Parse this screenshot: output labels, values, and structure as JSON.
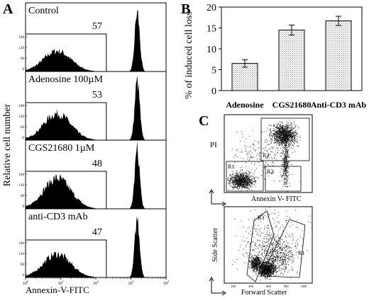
{
  "panel_labels": {
    "a": "A",
    "b": "B",
    "c": "C"
  },
  "chart_data": [
    {
      "type": "area",
      "panel": "A",
      "ylabel": "Relative cell number",
      "xlabel": "Annexin-V-FITC",
      "x_tick_labels": [
        "10",
        "10",
        "10",
        "10",
        "10"
      ],
      "x_tick_exponents": [
        "0",
        "1",
        "2",
        "3",
        "4"
      ],
      "xlim": [
        0,
        4
      ],
      "y_tick_labels": [
        "0",
        "60",
        "120",
        "180"
      ],
      "histograms": [
        {
          "label": "Control",
          "gate_value": "57",
          "low_peak_height": 0.35,
          "high_peak_height": 1.0
        },
        {
          "label": "Adenosine 100µM",
          "gate_value": "53",
          "low_peak_height": 0.45,
          "high_peak_height": 1.0
        },
        {
          "label": "CGS21680  1µM",
          "gate_value": "48",
          "low_peak_height": 0.52,
          "high_peak_height": 1.0
        },
        {
          "label": "anti-CD3 mAb",
          "gate_value": "47",
          "low_peak_height": 0.4,
          "high_peak_height": 1.0
        }
      ]
    },
    {
      "type": "bar",
      "panel": "B",
      "categories": [
        "Adenosine",
        "CGS21680",
        "Anti-CD3 mAb"
      ],
      "values": [
        6.5,
        14.5,
        16.7
      ],
      "errors": [
        0.9,
        1.2,
        1.1
      ],
      "ylabel": "% of induced cell loss",
      "ylim": [
        0,
        20
      ],
      "yticks": [
        0,
        5,
        10,
        15,
        20
      ]
    },
    {
      "type": "scatter",
      "panel": "C-top",
      "xlabel": "Annexin V- FITC",
      "ylabel": "PI",
      "regions": [
        "R1",
        "R2",
        "R3"
      ]
    },
    {
      "type": "scatter",
      "panel": "C-bottom",
      "xlabel": "Forward Scatter",
      "ylabel": "Side Scatter",
      "regions": [
        "R1",
        "R3"
      ],
      "x_tick_labels": [
        "200",
        "400",
        "600",
        "800",
        "1000"
      ]
    }
  ]
}
